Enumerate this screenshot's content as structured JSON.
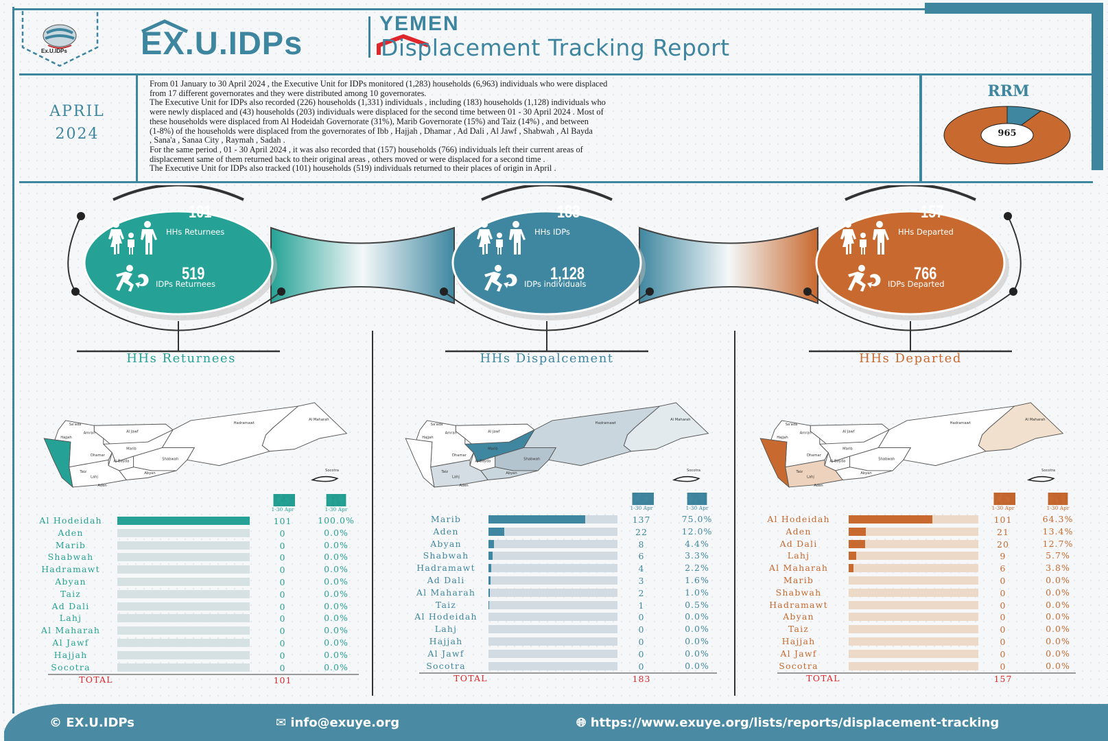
{
  "header": {
    "logo_text": "Ex.U.IDPs",
    "brand": "EX.U.IDPs",
    "country": "YEMEN",
    "report_title": "Displacement Tracking Report"
  },
  "period": {
    "month": "APRIL",
    "year": "2024"
  },
  "summary": {
    "lines": [
      "From 01 January to 30 April 2024 , the Executive Unit for IDPs monitored (1,283) households (6,963) individuals who were displaced",
      "from 17 different governorates and they were distributed among 10 governorates.",
      "The Executive Unit for IDPs also recorded (226) households (1,331) individuals , including (183) households (1,128) individuals who",
      "were newly displaced and (43) households (203) individuals were displaced for the second time between 01 - 30 April 2024 . Most of",
      "these households were displaced from Al Hodeidah Governorate (31%), Marib  Governorate (15%) and Taiz (14%) , and between",
      "(1-8%) of the households were displaced from the governorates of Ibb , Hajjah , Dhamar , Ad Dali , Al Jawf , Shabwah , Al Bayda",
      ", Sana'a , Sanaa City , Raymah , Sadah .",
      "For the same period , 01 - 30 April 2024 ,  it was also recorded that (157) households (766) individuals left their current areas of",
      "displacement same of  them  returned  back to their original areas , others moved or were displaced for a second time .",
      "The Executive Unit for IDPs also tracked (101) households (519) individuals returned to their places of origin in April ."
    ]
  },
  "rrm": {
    "title": "RRM",
    "value": "965",
    "segments": [
      {
        "share": 0.91,
        "color": "#c8692f"
      },
      {
        "share": 0.09,
        "color": "#3f87a0"
      }
    ]
  },
  "panels": [
    {
      "key": "returnees",
      "color": "#25a295",
      "track": "#d5e1e2",
      "title": "HHs Returnees",
      "stats": {
        "hh_value": "101",
        "hh_label": "HHs Returnees",
        "ind_value": "519",
        "ind_label": "IDPs Returnees"
      },
      "col_headers": [
        "1-30 Apr",
        "1-30 Apr"
      ],
      "rows": [
        {
          "name": "Al Hodeidah",
          "value": "101",
          "pct": 100.0
        },
        {
          "name": "Aden",
          "value": "0",
          "pct": 0.0
        },
        {
          "name": "Marib",
          "value": "0",
          "pct": 0.0
        },
        {
          "name": "Shabwah",
          "value": "0",
          "pct": 0.0
        },
        {
          "name": "Hadramawt",
          "value": "0",
          "pct": 0.0
        },
        {
          "name": "Abyan",
          "value": "0",
          "pct": 0.0
        },
        {
          "name": "Taiz",
          "value": "0",
          "pct": 0.0
        },
        {
          "name": "Ad Dali",
          "value": "0",
          "pct": 0.0
        },
        {
          "name": "Lahj",
          "value": "0",
          "pct": 0.0
        },
        {
          "name": "Al Maharah",
          "value": "0",
          "pct": 0.0
        },
        {
          "name": "Al Jawf",
          "value": "0",
          "pct": 0.0
        },
        {
          "name": "Hajjah",
          "value": "0",
          "pct": 0.0
        },
        {
          "name": "Socotra",
          "value": "0",
          "pct": 0.0
        }
      ],
      "total_label": "TOTAL",
      "total": "101",
      "map_fills": {
        "hodeidah": "#25a295"
      }
    },
    {
      "key": "displacement",
      "color": "#3f87a0",
      "track": "#d3dbe2",
      "title": "HHs  Dispalcement",
      "stats": {
        "hh_value": "183",
        "hh_label": "HHs IDPs",
        "ind_value": "1,128",
        "ind_label": "IDPs individuals"
      },
      "col_headers": [
        "1-30 Apr",
        "1-30 Apr"
      ],
      "rows": [
        {
          "name": "Marib",
          "value": "137",
          "pct": 75.0
        },
        {
          "name": "Aden",
          "value": "22",
          "pct": 12.0
        },
        {
          "name": "Abyan",
          "value": "8",
          "pct": 4.4
        },
        {
          "name": "Shabwah",
          "value": "6",
          "pct": 3.3
        },
        {
          "name": "Hadramawt",
          "value": "4",
          "pct": 2.2
        },
        {
          "name": "Ad Dali",
          "value": "3",
          "pct": 1.6
        },
        {
          "name": "Al Maharah",
          "value": "2",
          "pct": 1.0
        },
        {
          "name": "Taiz",
          "value": "1",
          "pct": 0.5
        },
        {
          "name": "Al Hodeidah",
          "value": "0",
          "pct": 0.0
        },
        {
          "name": "Lahj",
          "value": "0",
          "pct": 0.0
        },
        {
          "name": "Hajjah",
          "value": "0",
          "pct": 0.0
        },
        {
          "name": "Al Jawf",
          "value": "0",
          "pct": 0.0
        },
        {
          "name": "Socotra",
          "value": "0",
          "pct": 0.0
        }
      ],
      "total_label": "TOTAL",
      "total": "183",
      "map_fills": {
        "marib": "#3f87a0",
        "hadramawt": "#c9d6de",
        "shabwah": "#b3c4cf",
        "abyan": "#c9d6de",
        "almaharah": "#e3eaee",
        "southwest": "#d3dde3"
      }
    },
    {
      "key": "departed",
      "color": "#c8692f",
      "track": "#ecd9c7",
      "title": "HHs Departed",
      "stats": {
        "hh_value": "157",
        "hh_label": "HHs Departed",
        "ind_value": "766",
        "ind_label": "IDPs Departed"
      },
      "col_headers": [
        "1-30 Apr",
        "1-30 Apr"
      ],
      "rows": [
        {
          "name": "Al Hodeidah",
          "value": "101",
          "pct": 64.3
        },
        {
          "name": "Aden",
          "value": "21",
          "pct": 13.4
        },
        {
          "name": "Ad Dali",
          "value": "20",
          "pct": 12.7
        },
        {
          "name": "Lahj",
          "value": "9",
          "pct": 5.7
        },
        {
          "name": "Al Maharah",
          "value": "6",
          "pct": 3.8
        },
        {
          "name": "Marib",
          "value": "0",
          "pct": 0.0
        },
        {
          "name": "Shabwah",
          "value": "0",
          "pct": 0.0
        },
        {
          "name": "Hadramawt",
          "value": "0",
          "pct": 0.0
        },
        {
          "name": "Abyan",
          "value": "0",
          "pct": 0.0
        },
        {
          "name": "Taiz",
          "value": "0",
          "pct": 0.0
        },
        {
          "name": "Hajjah",
          "value": "0",
          "pct": 0.0
        },
        {
          "name": "Al Jawf",
          "value": "0",
          "pct": 0.0
        },
        {
          "name": "Socotra",
          "value": "0",
          "pct": 0.0
        }
      ],
      "total_label": "TOTAL",
      "total": "157",
      "map_fills": {
        "hodeidah": "#c8692f",
        "southwest": "#edd3bd",
        "almaharah": "#f1e0ce"
      }
    }
  ],
  "map_labels": [
    "Sa'ada",
    "Hajjah",
    "Amran",
    "Al Jawf",
    "Marib",
    "Hadramawt",
    "Al Maharah",
    "Shabwah",
    "Al Bayda",
    "Abyan",
    "Lahj",
    "Taiz",
    "Aden",
    "Dhamar",
    "Socotra"
  ],
  "footer": {
    "copyright": "EX.U.IDPs",
    "email": "info@exuye.org",
    "url": "https://www.exuye.org/lists/reports/displacement-tracking"
  }
}
